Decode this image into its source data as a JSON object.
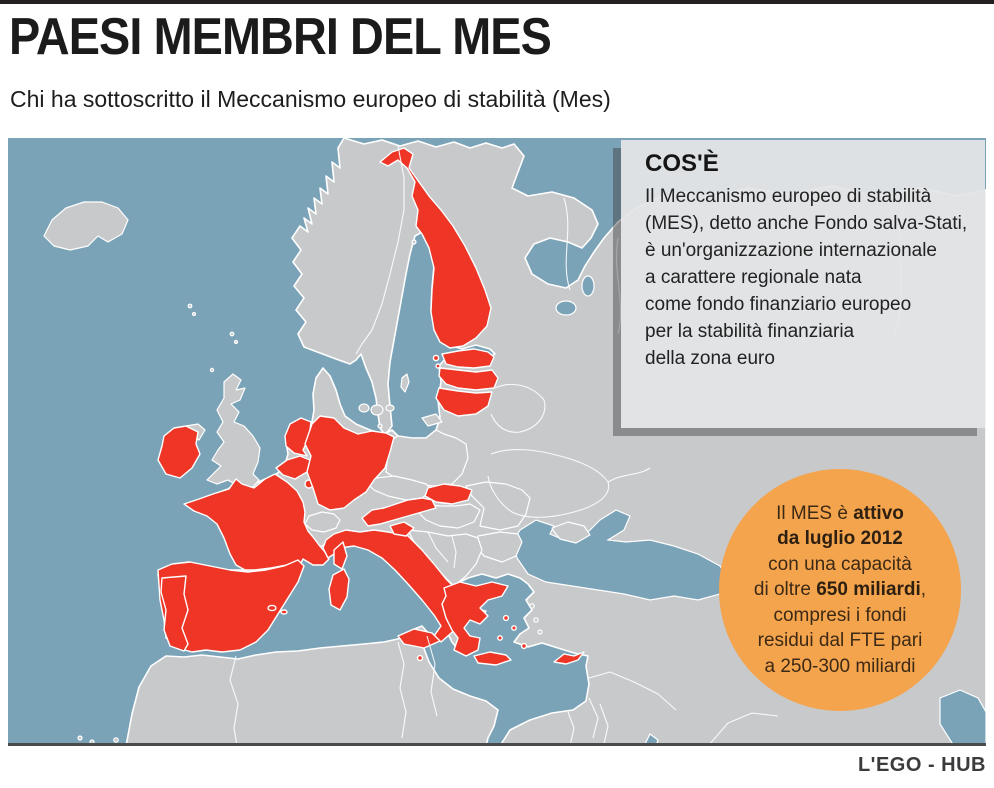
{
  "header": {
    "title": "PAESI MEMBRI DEL MES",
    "subtitle": "Chi ha sottoscritto il Meccanismo europeo di stabilità (Mes)"
  },
  "infobox": {
    "title": "COS'È",
    "lines": [
      "Il Meccanismo europeo di stabilità",
      "(MES), detto anche Fondo salva-Stati,",
      "è un'organizzazione internazionale",
      "a carattere regionale nata",
      "come fondo finanziario europeo",
      "per la stabilità finanziaria",
      "della zona euro"
    ]
  },
  "callout": {
    "lines": [
      [
        [
          "Il MES è ",
          false
        ],
        [
          "attivo",
          true
        ]
      ],
      [
        [
          "da luglio 2012",
          true
        ]
      ],
      [
        [
          "con una capacità",
          false
        ]
      ],
      [
        [
          "di oltre ",
          false
        ],
        [
          "650 miliardi",
          true
        ],
        [
          ",",
          false
        ]
      ],
      [
        [
          "compresi i fondi",
          false
        ]
      ],
      [
        [
          "residui dal FTE pari",
          false
        ]
      ],
      [
        [
          "a 250-300 miliardi",
          false
        ]
      ]
    ]
  },
  "footer": {
    "credit": "L'EGO - HUB"
  },
  "map": {
    "member_countries": [
      "Finland",
      "Estonia",
      "Latvia",
      "Lithuania",
      "Ireland",
      "Netherlands",
      "Belgium",
      "Luxembourg",
      "Germany",
      "France",
      "Portugal",
      "Spain",
      "Italy",
      "Austria",
      "Slovakia",
      "Slovenia",
      "Greece",
      "Malta",
      "Cyprus"
    ]
  },
  "palette": {
    "sea": "#7ba3b7",
    "land": "#c7c9cb",
    "member": "#ee3526",
    "circle": "#f5a44e"
  }
}
